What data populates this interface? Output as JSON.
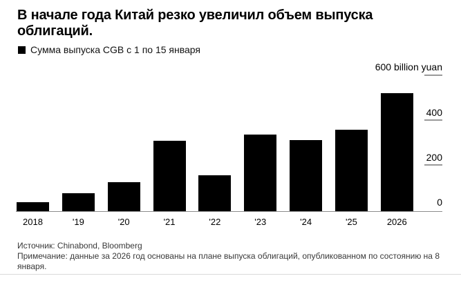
{
  "header": {
    "title": "В начале года Китай резко увеличил объем выпуска облигаций.",
    "legend_label": "Сумма выпуска CGB с 1 по 15 января"
  },
  "footer": {
    "source": "Источник: Chinabond, Bloomberg",
    "note": "Примечание: данные за 2026 год основаны на плане выпуска облигаций, опубликованном по состоянию на 8 января."
  },
  "colors": {
    "bar": "#000000",
    "axis_line": "#8c8c8c",
    "tick": "#999999",
    "text": "#000000",
    "footer_text": "#383838",
    "divider": "#d9d9d9",
    "background": "#ffffff"
  },
  "chart_data": {
    "type": "bar",
    "title": "В начале года Китай резко увеличил объем выпуска облигаций.",
    "series_name": "Сумма выпуска CGB с 1 по 15 января",
    "categories": [
      "2018",
      "'19",
      "'20",
      "'21",
      "'22",
      "'23",
      "'24",
      "'25",
      "2026"
    ],
    "values": [
      40,
      80,
      128,
      310,
      158,
      338,
      314,
      360,
      522
    ],
    "unit": "billion yuan",
    "ylim": [
      0,
      600
    ],
    "yticks": [
      0,
      200,
      400,
      600
    ],
    "ytick_labels_top_down": [
      "600 billion yuan",
      "400",
      "200",
      "0"
    ],
    "axis_side": "right",
    "grid": false,
    "legend_position": "top-left",
    "bar_color": "#000000"
  }
}
